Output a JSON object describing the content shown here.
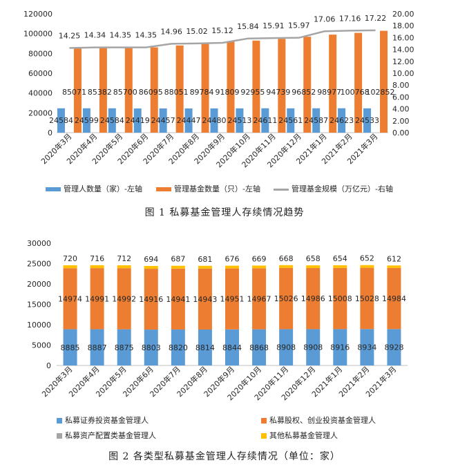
{
  "chart_data": [
    {
      "type": "bar",
      "categories": [
        "2020年3月",
        "2020年4月",
        "2020年5月",
        "2020年6月",
        "2020年7月",
        "2020年8月",
        "2020年9月",
        "2020年10月",
        "2020年11月",
        "2020年12月",
        "2021年1月",
        "2021年2月",
        "2021年3月"
      ],
      "series": [
        {
          "name": "管理人数量（家）-左轴",
          "type": "bar",
          "axis": "left",
          "color": "#5B9BD5",
          "values": [
            24584,
            24599,
            24584,
            24419,
            24457,
            24447,
            24480,
            24513,
            24611,
            24561,
            24587,
            24623,
            24533
          ]
        },
        {
          "name": "管理基金数量（只）-左轴",
          "type": "bar",
          "axis": "left",
          "color": "#ED7D31",
          "values": [
            85071,
            85382,
            85700,
            86095,
            88051,
            89784,
            91809,
            92955,
            94739,
            96852,
            98977,
            100768,
            102852
          ]
        },
        {
          "name": "管理基金规模（万亿元）-右轴",
          "type": "line",
          "axis": "right",
          "color": "#A5A5A5",
          "values": [
            14.25,
            14.34,
            14.35,
            14.35,
            14.96,
            15.02,
            15.12,
            15.84,
            15.91,
            15.97,
            17.06,
            17.16,
            17.22
          ]
        }
      ],
      "yticks_left": [
        "0",
        "20000",
        "40000",
        "60000",
        "80000",
        "100000",
        "120000"
      ],
      "ylim_left": [
        0,
        120000
      ],
      "yticks_right": [
        "0.00",
        "2.00",
        "4.00",
        "6.00",
        "8.00",
        "10.00",
        "12.00",
        "14.00",
        "16.00",
        "18.00",
        "20.00"
      ],
      "ylim_right": [
        0,
        20
      ],
      "grid": false,
      "legend": "bottom",
      "caption": "图 1  私募基金管理人存续情况趋势"
    },
    {
      "type": "bar",
      "stacked": true,
      "categories": [
        "2020年3月",
        "2020年4月",
        "2020年5月",
        "2020年6月",
        "2020年7月",
        "2020年8月",
        "2020年9月",
        "2020年10月",
        "2020年11月",
        "2020年12月",
        "2021年1月",
        "2021年2月",
        "2021年3月"
      ],
      "series": [
        {
          "name": "私募证券投资基金管理人",
          "color": "#5B9BD5",
          "values": [
            8885,
            8887,
            8875,
            8803,
            8820,
            8814,
            8844,
            8868,
            8908,
            8908,
            8916,
            8934,
            8928
          ]
        },
        {
          "name": "私募股权、创业投资基金管理人",
          "color": "#ED7D31",
          "values": [
            14974,
            14991,
            14992,
            14916,
            14941,
            14943,
            14951,
            14967,
            15026,
            14986,
            15008,
            15028,
            14984
          ]
        },
        {
          "name": "私募资产配置类基金管理人",
          "color": "#A5A5A5",
          "values": [
            5,
            5,
            5,
            6,
            9,
            9,
            9,
            9,
            9,
            9,
            9,
            9,
            9
          ]
        },
        {
          "name": "其他私募基金管理人",
          "color": "#FFC000",
          "values": [
            720,
            716,
            712,
            694,
            687,
            681,
            676,
            669,
            668,
            658,
            654,
            652,
            612
          ]
        }
      ],
      "yticks": [
        "0",
        "5000",
        "10000",
        "15000",
        "20000",
        "25000",
        "30000"
      ],
      "ylim": [
        0,
        30000
      ],
      "grid": false,
      "legend": "bottom",
      "caption": "图 2  各类型私募基金管理人存续情况（单位：家）"
    }
  ]
}
